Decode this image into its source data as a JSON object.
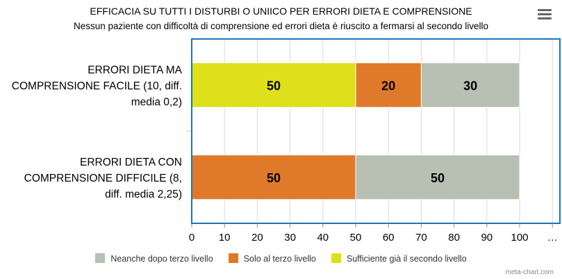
{
  "title": "EFFICACIA SU TUTTI I DISTURBI O UNIICO PER ERRORI DIETA E COMPRENSIONE",
  "subtitle": "Nessun paziente con difficoltà di comprensione ed errori dieta è riuscito a fermarsi al secondo livello",
  "menu_icon": "hamburger-menu-icon",
  "credit": "meta-chart.com",
  "colors": {
    "plot_border": "#1a73bc",
    "grid": "#d9d9d9"
  },
  "chart_data": {
    "type": "bar",
    "orientation": "horizontal",
    "stacking": "percent",
    "categories": [
      [
        "ERRORI DIETA MA",
        "COMPRENSIONE FACILE (10, diff.",
        "media 0,2)"
      ],
      [
        "ERRORI DIETA CON",
        "COMPRENSIONE DIFFICILE (8,",
        "diff. media 2,25)"
      ]
    ],
    "series": [
      {
        "name": "Sufficiente già il secondo livello",
        "color": "#dde01a",
        "values": [
          50,
          0
        ]
      },
      {
        "name": "Solo al terzo livello",
        "color": "#e07a2b",
        "values": [
          20,
          50
        ]
      },
      {
        "name": "Neanche dopo terzo livello",
        "color": "#b7c0b3",
        "values": [
          30,
          50
        ]
      }
    ],
    "legend_order": [
      "Neanche dopo terzo livello",
      "Solo al terzo livello",
      "Sufficiente già il secondo livello"
    ],
    "xlim": [
      0,
      100
    ],
    "xticks": [
      "0",
      "10",
      "20",
      "30",
      "40",
      "50",
      "60",
      "70",
      "80",
      "90",
      "100",
      "…"
    ],
    "grid": true,
    "legend_position": "bottom"
  }
}
